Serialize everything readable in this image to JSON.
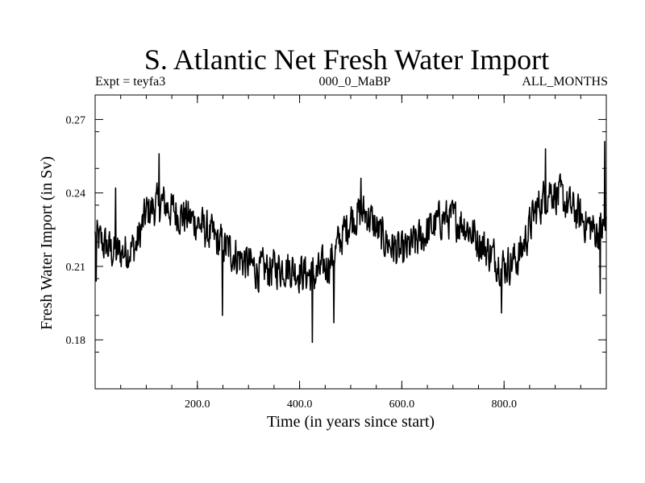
{
  "chart_data": {
    "type": "line",
    "title": "S. Atlantic Net Fresh Water Import",
    "subtitle_left": "Expt = teyfa3",
    "subtitle_center": "000_0_MaBP",
    "subtitle_right": "ALL_MONTHS",
    "xlabel": "Time (in years since start)",
    "ylabel": "Fresh Water Import (in Sv)",
    "xlim": [
      0,
      1000
    ],
    "ylim": [
      0.16,
      0.28
    ],
    "x_ticks": [
      {
        "value": 200,
        "label": "200.0"
      },
      {
        "value": 400,
        "label": "400.0"
      },
      {
        "value": 600,
        "label": "600.0"
      },
      {
        "value": 800,
        "label": "800.0"
      }
    ],
    "y_ticks": [
      {
        "value": 0.18,
        "label": "0.18"
      },
      {
        "value": 0.21,
        "label": "0.21"
      },
      {
        "value": 0.24,
        "label": "0.24"
      },
      {
        "value": 0.27,
        "label": "0.27"
      }
    ],
    "x_minor_step": 50,
    "y_minor_step": 0.015,
    "series": [
      {
        "name": "net fresh water import",
        "anchors": [
          [
            0,
            0.222
          ],
          [
            40,
            0.215
          ],
          [
            80,
            0.218
          ],
          [
            100,
            0.232
          ],
          [
            130,
            0.236
          ],
          [
            160,
            0.232
          ],
          [
            200,
            0.228
          ],
          [
            240,
            0.22
          ],
          [
            280,
            0.214
          ],
          [
            320,
            0.208
          ],
          [
            370,
            0.21
          ],
          [
            400,
            0.208
          ],
          [
            430,
            0.206
          ],
          [
            460,
            0.212
          ],
          [
            500,
            0.23
          ],
          [
            530,
            0.232
          ],
          [
            560,
            0.222
          ],
          [
            600,
            0.215
          ],
          [
            640,
            0.222
          ],
          [
            680,
            0.23
          ],
          [
            720,
            0.228
          ],
          [
            760,
            0.218
          ],
          [
            800,
            0.21
          ],
          [
            830,
            0.214
          ],
          [
            860,
            0.232
          ],
          [
            890,
            0.242
          ],
          [
            920,
            0.236
          ],
          [
            950,
            0.23
          ],
          [
            980,
            0.224
          ],
          [
            1000,
            0.226
          ]
        ],
        "noise_amplitude": 0.008,
        "spikes": [
          [
            2,
            0.204
          ],
          [
            40,
            0.242
          ],
          [
            125,
            0.256
          ],
          [
            249,
            0.19
          ],
          [
            425,
            0.179
          ],
          [
            467,
            0.187
          ],
          [
            520,
            0.246
          ],
          [
            795,
            0.191
          ],
          [
            881,
            0.258
          ],
          [
            988,
            0.199
          ],
          [
            997,
            0.261
          ]
        ],
        "points_per_year": 1
      }
    ]
  }
}
